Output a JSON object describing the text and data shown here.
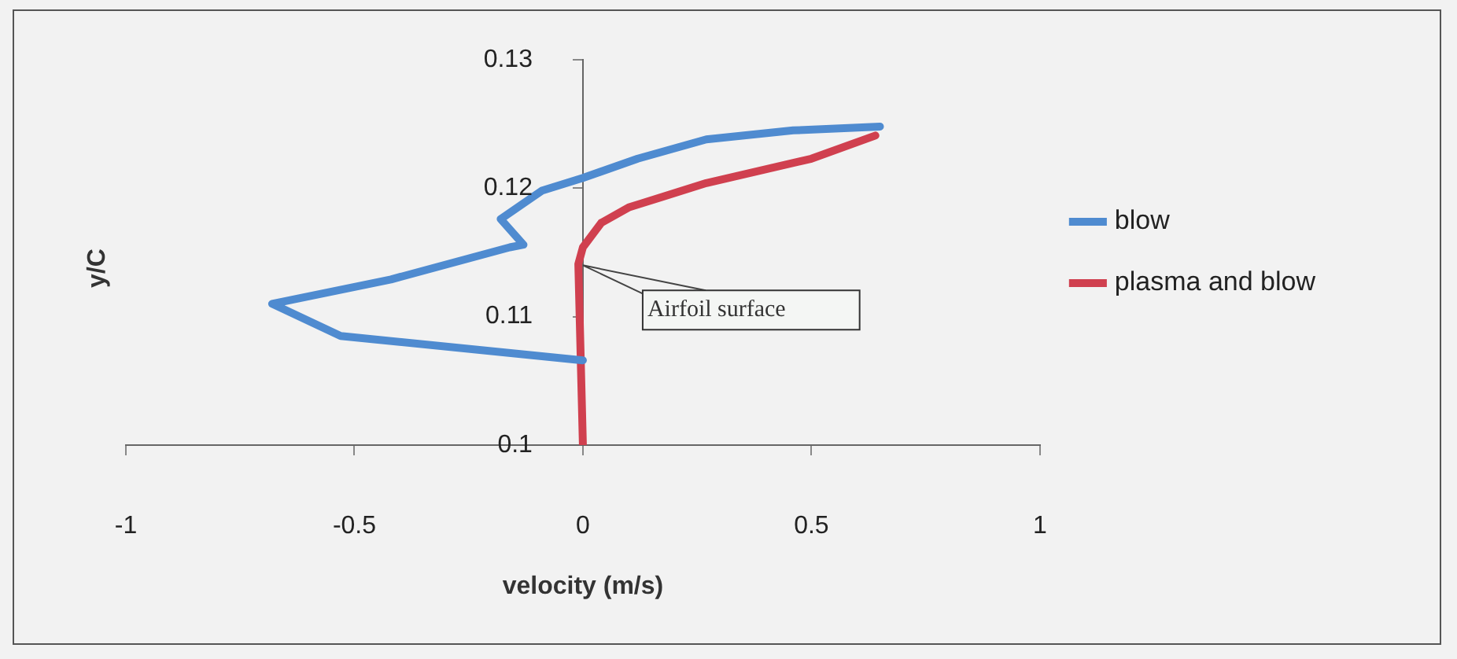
{
  "chart_data": {
    "type": "line",
    "xlabel": "velocity (m/s)",
    "ylabel": "y/C",
    "xlim": [
      -1,
      1
    ],
    "xticks": [
      -1,
      -0.5,
      0,
      0.5,
      1
    ],
    "ylim": [
      0.1,
      0.13
    ],
    "yticks": [
      0.1,
      0.11,
      0.12,
      0.13
    ],
    "grid": false,
    "legend": "right",
    "marker": "none",
    "annotations": [
      {
        "text": "Airfoil surface",
        "x": 0,
        "y": 0.114
      }
    ],
    "series": [
      {
        "name": "blow",
        "color": "#4f8bd0",
        "x": [
          0,
          -0.53,
          -0.68,
          -0.42,
          -0.16,
          -0.13,
          -0.18,
          -0.09,
          0,
          0.12,
          0.27,
          0.46,
          0.65
        ],
        "values": [
          0.1066,
          0.1085,
          0.111,
          0.1129,
          0.1154,
          0.1156,
          0.1176,
          0.1198,
          0.1208,
          0.1223,
          0.1238,
          0.1245,
          0.1248
        ]
      },
      {
        "name": "plasma and blow",
        "color": "#d0404f",
        "x": [
          0,
          -0.01,
          0,
          0.04,
          0.1,
          0.27,
          0.5,
          0.64
        ],
        "values": [
          0.1,
          0.1141,
          0.1154,
          0.1173,
          0.1185,
          0.1204,
          0.1223,
          0.1241
        ]
      }
    ]
  }
}
